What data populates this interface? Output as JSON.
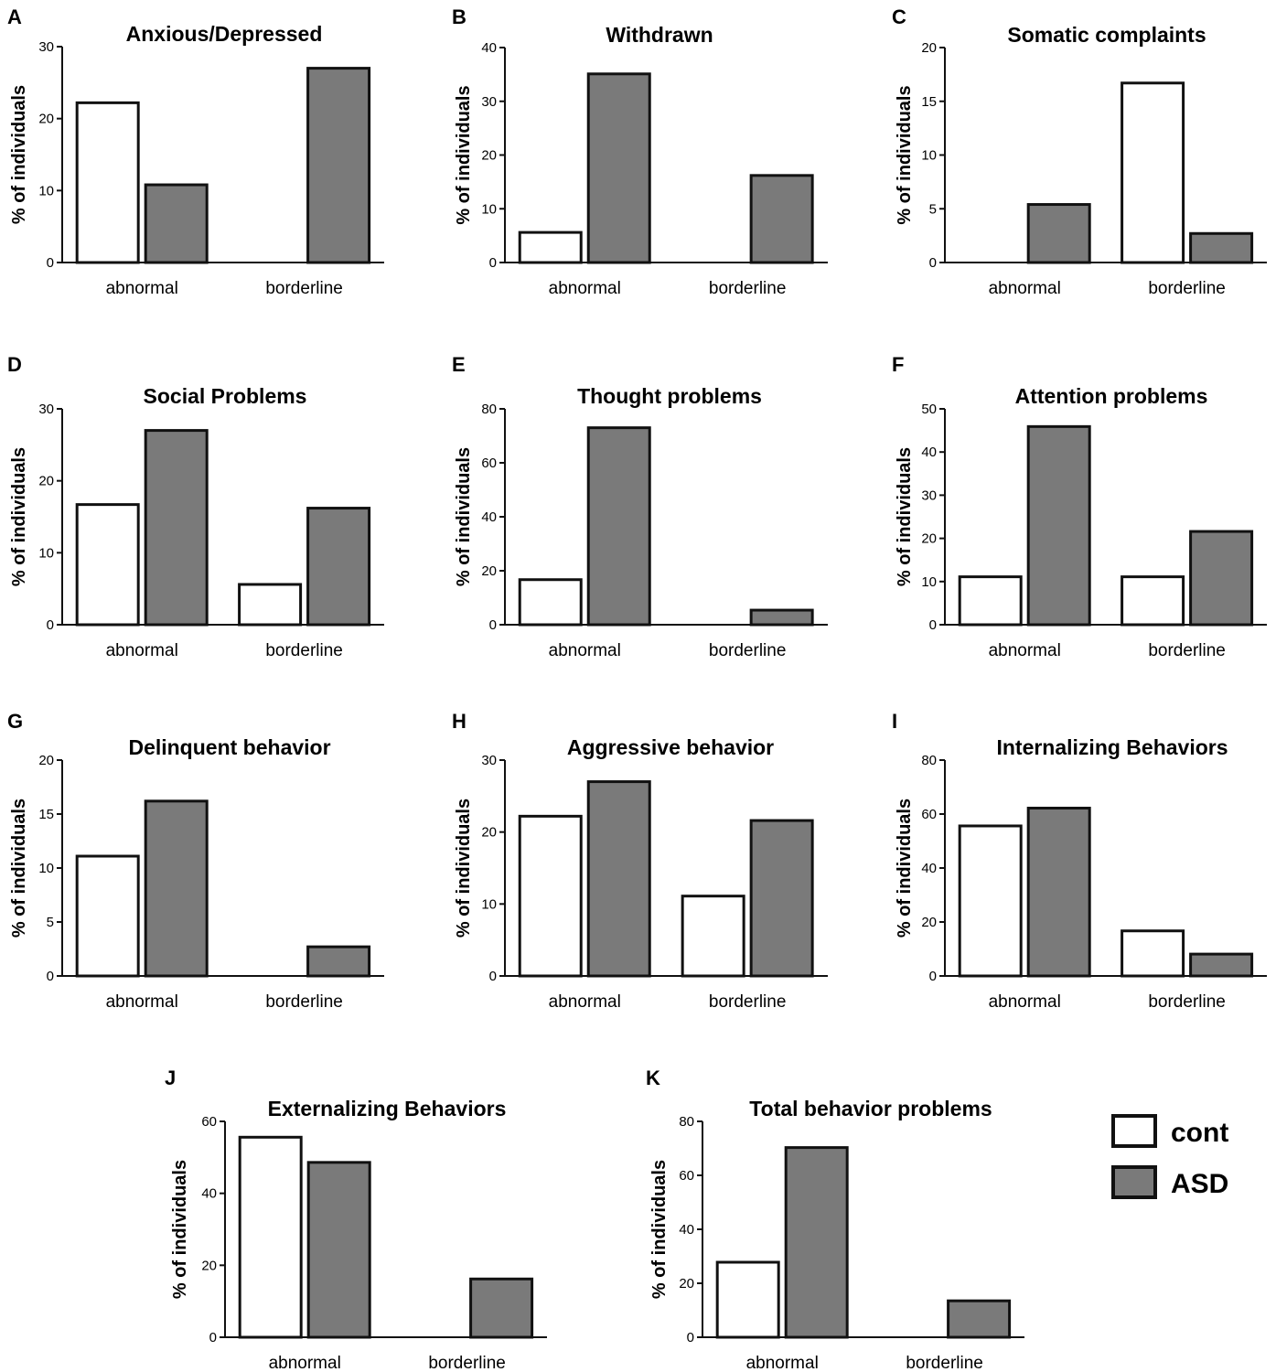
{
  "chart_data": [
    {
      "letter": "A",
      "type": "bar",
      "title": "Anxious/Depressed",
      "ylabel": "% of individuals",
      "categories": [
        "abnormal",
        "borderline"
      ],
      "ylim": [
        0,
        30
      ],
      "ticks": [
        0,
        10,
        20,
        30
      ],
      "series": [
        {
          "name": "cont",
          "values": [
            22.2,
            0
          ]
        },
        {
          "name": "ASD",
          "values": [
            10.8,
            27
          ]
        }
      ]
    },
    {
      "letter": "B",
      "type": "bar",
      "title": "Withdrawn",
      "ylabel": "% of individuals",
      "categories": [
        "abnormal",
        "borderline"
      ],
      "ylim": [
        0,
        40
      ],
      "ticks": [
        0,
        10,
        20,
        30,
        40
      ],
      "series": [
        {
          "name": "cont",
          "values": [
            5.6,
            0
          ]
        },
        {
          "name": "ASD",
          "values": [
            35.1,
            16.2
          ]
        }
      ]
    },
    {
      "letter": "C",
      "type": "bar",
      "title": "Somatic complaints",
      "ylabel": "% of individuals",
      "categories": [
        "abnormal",
        "borderline"
      ],
      "ylim": [
        0,
        20
      ],
      "ticks": [
        0,
        5,
        10,
        15,
        20
      ],
      "series": [
        {
          "name": "cont",
          "values": [
            0,
            16.7
          ]
        },
        {
          "name": "ASD",
          "values": [
            5.4,
            2.7
          ]
        }
      ]
    },
    {
      "letter": "D",
      "type": "bar",
      "title": "Social Problems",
      "ylabel": "% of individuals",
      "categories": [
        "abnormal",
        "borderline"
      ],
      "ylim": [
        0,
        30
      ],
      "ticks": [
        0,
        10,
        20,
        30
      ],
      "series": [
        {
          "name": "cont",
          "values": [
            16.7,
            5.6
          ]
        },
        {
          "name": "ASD",
          "values": [
            27,
            16.2
          ]
        }
      ]
    },
    {
      "letter": "E",
      "type": "bar",
      "title": "Thought problems",
      "ylabel": "% of individuals",
      "categories": [
        "abnormal",
        "borderline"
      ],
      "ylim": [
        0,
        80
      ],
      "ticks": [
        0,
        20,
        40,
        60,
        80
      ],
      "series": [
        {
          "name": "cont",
          "values": [
            16.7,
            0
          ]
        },
        {
          "name": "ASD",
          "values": [
            73,
            5.4
          ]
        }
      ]
    },
    {
      "letter": "F",
      "type": "bar",
      "title": "Attention problems",
      "ylabel": "% of individuals",
      "categories": [
        "abnormal",
        "borderline"
      ],
      "ylim": [
        0,
        50
      ],
      "ticks": [
        0,
        10,
        20,
        30,
        40,
        50
      ],
      "series": [
        {
          "name": "cont",
          "values": [
            11.1,
            11.1
          ]
        },
        {
          "name": "ASD",
          "values": [
            45.9,
            21.6
          ]
        }
      ]
    },
    {
      "letter": "G",
      "type": "bar",
      "title": "Delinquent behavior",
      "ylabel": "% of individuals",
      "categories": [
        "abnormal",
        "borderline"
      ],
      "ylim": [
        0,
        20
      ],
      "ticks": [
        0,
        5,
        10,
        15,
        20
      ],
      "series": [
        {
          "name": "cont",
          "values": [
            11.1,
            0
          ]
        },
        {
          "name": "ASD",
          "values": [
            16.2,
            2.7
          ]
        }
      ]
    },
    {
      "letter": "H",
      "type": "bar",
      "title": "Aggressive behavior",
      "ylabel": "% of individuals",
      "categories": [
        "abnormal",
        "borderline"
      ],
      "ylim": [
        0,
        30
      ],
      "ticks": [
        0,
        10,
        20,
        30
      ],
      "series": [
        {
          "name": "cont",
          "values": [
            22.2,
            11.1
          ]
        },
        {
          "name": "ASD",
          "values": [
            27,
            21.6
          ]
        }
      ]
    },
    {
      "letter": "I",
      "type": "bar",
      "title": "Internalizing Behaviors",
      "ylabel": "% of individuals",
      "categories": [
        "abnormal",
        "borderline"
      ],
      "ylim": [
        0,
        80
      ],
      "ticks": [
        0,
        20,
        40,
        60,
        80
      ],
      "series": [
        {
          "name": "cont",
          "values": [
            55.6,
            16.7
          ]
        },
        {
          "name": "ASD",
          "values": [
            62.2,
            8.1
          ]
        }
      ]
    },
    {
      "letter": "J",
      "type": "bar",
      "title": "Externalizing Behaviors",
      "ylabel": "% of individuals",
      "categories": [
        "abnormal",
        "borderline"
      ],
      "ylim": [
        0,
        60
      ],
      "ticks": [
        0,
        20,
        40,
        60
      ],
      "series": [
        {
          "name": "cont",
          "values": [
            55.6,
            0
          ]
        },
        {
          "name": "ASD",
          "values": [
            48.6,
            16.2
          ]
        }
      ]
    },
    {
      "letter": "K",
      "type": "bar",
      "title": "Total behavior problems",
      "ylabel": "% of individuals",
      "categories": [
        "abnormal",
        "borderline"
      ],
      "ylim": [
        0,
        80
      ],
      "ticks": [
        0,
        20,
        40,
        60,
        80
      ],
      "series": [
        {
          "name": "cont",
          "values": [
            27.8,
            0
          ]
        },
        {
          "name": "ASD",
          "values": [
            70.3,
            13.5
          ]
        }
      ]
    }
  ],
  "legend": [
    {
      "label": "cont",
      "color": "#ffffff"
    },
    {
      "label": "ASD",
      "color": "#7a7a7a"
    }
  ],
  "colors": {
    "cont": "#ffffff",
    "ASD": "#7a7a7a",
    "stroke": "#111111"
  }
}
